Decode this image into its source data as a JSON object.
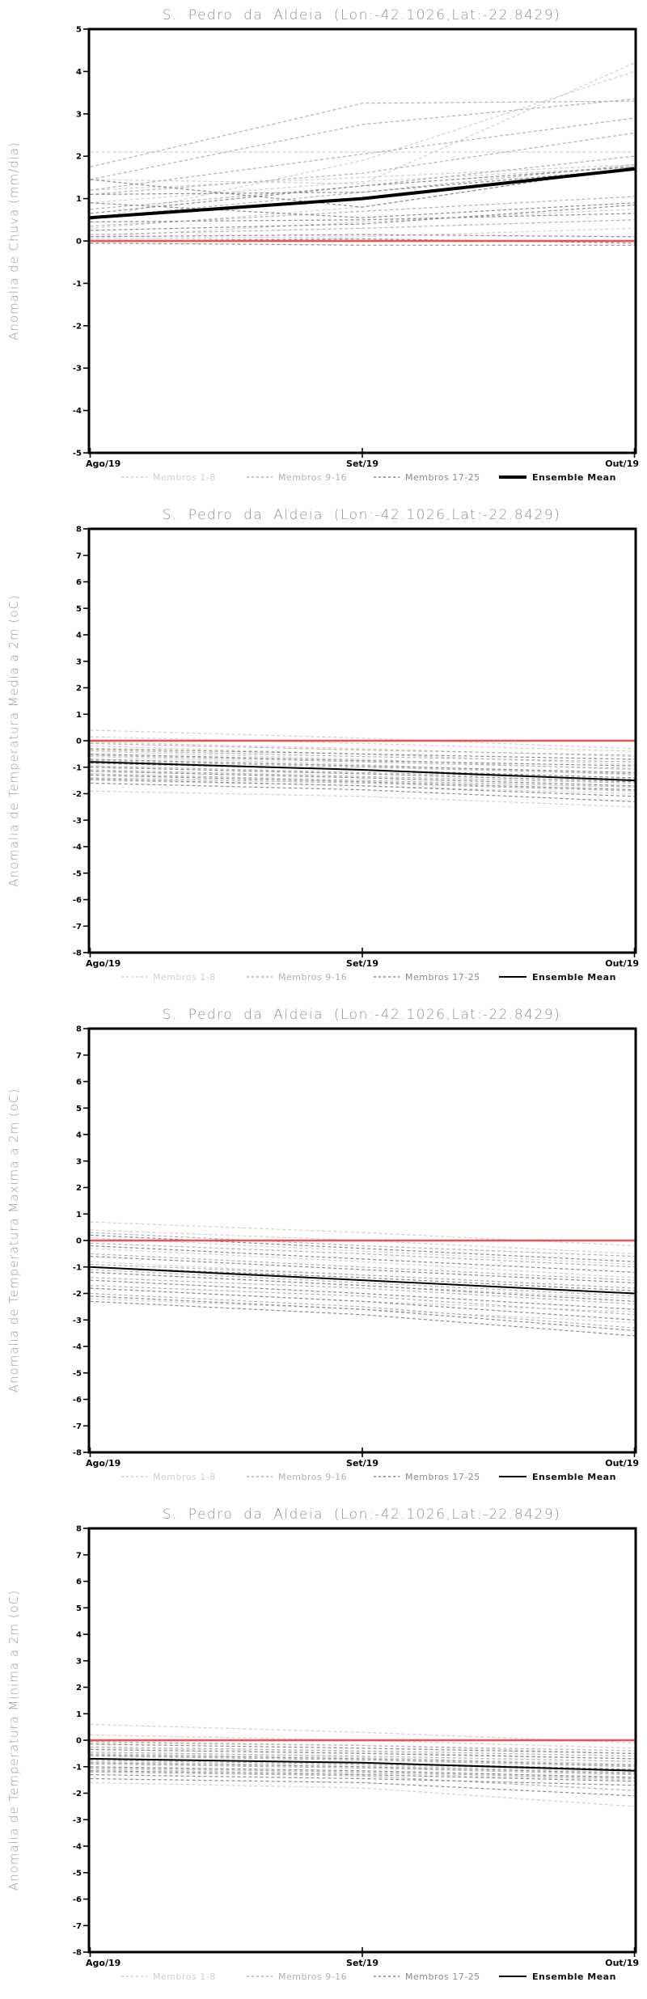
{
  "page": {
    "background": "#ffffff",
    "accent_red": "#ee5350",
    "axis_color": "#000000",
    "title_color": "#8f8f8f"
  },
  "chart_data": [
    {
      "type": "line",
      "title": "S. Pedro da Aldeia (Lon:-42.1026,Lat:-22.8429)",
      "ylabel": "Anomalia de Chuva (mm/dia)",
      "x_labels": [
        "Ago/19",
        "Set/19",
        "Out/19"
      ],
      "ylim": [
        -5,
        5
      ],
      "yticks": [
        5,
        4,
        3,
        2,
        1,
        0,
        -1,
        -2,
        -3,
        -4,
        -5
      ],
      "zero_line": {
        "value": 0,
        "color": "#ee5350"
      },
      "ensemble": {
        "label": "Ensemble Mean",
        "color": "#000000",
        "width": 4,
        "values": [
          0.55,
          1.0,
          1.7
        ]
      },
      "groups": [
        {
          "label": "Membros 1-8",
          "color": "#d0d0d0",
          "members": [
            [
              2.1,
              2.1,
              2.1
            ],
            [
              1.45,
              1.35,
              4.2
            ],
            [
              0.5,
              1.9,
              4.0
            ],
            [
              1.2,
              1.5,
              1.8
            ],
            [
              0.3,
              0.8,
              1.75
            ],
            [
              0.1,
              0.45,
              0.75
            ],
            [
              0.9,
              1.4,
              1.75
            ],
            [
              0.05,
              0.1,
              0.3
            ]
          ]
        },
        {
          "label": "Membros 9-16",
          "color": "#b2b2b2",
          "members": [
            [
              1.75,
              3.25,
              3.3
            ],
            [
              1.45,
              2.75,
              3.35
            ],
            [
              1.2,
              2.05,
              2.9
            ],
            [
              1.1,
              1.6,
              2.55
            ],
            [
              0.75,
              1.3,
              2.0
            ],
            [
              0.55,
              1.15,
              1.8
            ],
            [
              0.35,
              0.7,
              1.05
            ],
            [
              0.15,
              0.3,
              0.5
            ]
          ]
        },
        {
          "label": "Membros 17-25",
          "color": "#8c8c8c",
          "members": [
            [
              1.45,
              0.8,
              1.75
            ],
            [
              1.1,
              1.15,
              1.7
            ],
            [
              0.9,
              0.55,
              0.9
            ],
            [
              0.65,
              1.3,
              1.75
            ],
            [
              0.45,
              0.5,
              0.65
            ],
            [
              0.25,
              0.4,
              0.85
            ],
            [
              0.1,
              0.15,
              0.1
            ],
            [
              0.0,
              0.05,
              -0.05
            ],
            [
              -0.05,
              -0.1,
              -0.1
            ]
          ]
        }
      ]
    },
    {
      "type": "line",
      "title": "S. Pedro da Aldeia (Lon:-42.1026,Lat:-22.8429)",
      "ylabel": "Anomalia de Temperatura Media a 2m (oC)",
      "x_labels": [
        "Ago/19",
        "Set/19",
        "Out/19"
      ],
      "ylim": [
        -8,
        8
      ],
      "yticks": [
        8,
        7,
        6,
        5,
        4,
        3,
        2,
        1,
        0,
        -1,
        -2,
        -3,
        -4,
        -5,
        -6,
        -7,
        -8
      ],
      "zero_line": {
        "value": 0,
        "color": "#ee5350"
      },
      "ensemble": {
        "label": "Ensemble Mean",
        "color": "#000000",
        "width": 2,
        "values": [
          -0.8,
          -1.1,
          -1.5
        ]
      },
      "groups": [
        {
          "label": "Membros 1-8",
          "color": "#d0d0d0",
          "members": [
            [
              0.4,
              0.1,
              -0.3
            ],
            [
              0.15,
              -0.1,
              -0.4
            ],
            [
              -0.05,
              -0.3,
              -0.6
            ],
            [
              -0.2,
              -0.5,
              -0.9
            ],
            [
              -0.4,
              -0.7,
              -1.1
            ],
            [
              -0.6,
              -0.9,
              -1.3
            ],
            [
              -1.5,
              -1.7,
              -2.0
            ],
            [
              -1.9,
              -2.1,
              -2.5
            ]
          ]
        },
        {
          "label": "Membros 9-16",
          "color": "#b2b2b2",
          "members": [
            [
              -0.1,
              -0.35,
              -0.55
            ],
            [
              -0.35,
              -0.6,
              -0.8
            ],
            [
              -0.55,
              -0.8,
              -1.05
            ],
            [
              -0.75,
              -1.0,
              -1.25
            ],
            [
              -0.95,
              -1.2,
              -1.45
            ],
            [
              -1.1,
              -1.35,
              -1.6
            ],
            [
              -1.25,
              -1.5,
              -1.75
            ],
            [
              -1.4,
              -1.6,
              -1.9
            ]
          ]
        },
        {
          "label": "Membros 17-25",
          "color": "#8c8c8c",
          "members": [
            [
              -0.3,
              -0.5,
              -0.7
            ],
            [
              -0.5,
              -0.75,
              -0.95
            ],
            [
              -0.7,
              -0.95,
              -1.2
            ],
            [
              -0.85,
              -1.1,
              -1.4
            ],
            [
              -1.0,
              -1.25,
              -1.55
            ],
            [
              -1.15,
              -1.4,
              -1.7
            ],
            [
              -1.3,
              -1.55,
              -1.85
            ],
            [
              -1.45,
              -1.7,
              -2.1
            ],
            [
              -1.6,
              -1.85,
              -2.3
            ]
          ]
        }
      ]
    },
    {
      "type": "line",
      "title": "S. Pedro da Aldeia (Lon:-42.1026,Lat:-22.8429)",
      "ylabel": "Anomalia de Temperatura Maxima a 2m (oC)",
      "x_labels": [
        "Ago/19",
        "Set/19",
        "Out/19"
      ],
      "ylim": [
        -8,
        8
      ],
      "yticks": [
        8,
        7,
        6,
        5,
        4,
        3,
        2,
        1,
        0,
        -1,
        -2,
        -3,
        -4,
        -5,
        -6,
        -7,
        -8
      ],
      "zero_line": {
        "value": 0,
        "color": "#ee5350"
      },
      "ensemble": {
        "label": "Ensemble Mean",
        "color": "#000000",
        "width": 2,
        "values": [
          -1.0,
          -1.5,
          -2.0
        ]
      },
      "groups": [
        {
          "label": "Membros 1-8",
          "color": "#d0d0d0",
          "members": [
            [
              0.7,
              0.3,
              -0.2
            ],
            [
              0.4,
              0.0,
              -0.5
            ],
            [
              0.1,
              -0.4,
              -0.9
            ],
            [
              -0.3,
              -0.8,
              -1.4
            ],
            [
              -0.8,
              -1.3,
              -1.8
            ],
            [
              -1.2,
              -1.7,
              -2.2
            ],
            [
              -1.8,
              -2.3,
              -2.7
            ],
            [
              -2.2,
              -2.6,
              -3.1
            ]
          ]
        },
        {
          "label": "Membros 9-16",
          "color": "#b2b2b2",
          "members": [
            [
              0.3,
              -0.2,
              -0.6
            ],
            [
              -0.1,
              -0.5,
              -1.0
            ],
            [
              -0.5,
              -1.0,
              -1.5
            ],
            [
              -0.9,
              -1.3,
              -1.8
            ],
            [
              -1.1,
              -1.6,
              -2.1
            ],
            [
              -1.4,
              -1.8,
              -2.4
            ],
            [
              -1.7,
              -2.1,
              -2.8
            ],
            [
              -2.0,
              -2.5,
              -3.3
            ]
          ]
        },
        {
          "label": "Membros 17-25",
          "color": "#8c8c8c",
          "members": [
            [
              0.2,
              -0.3,
              -0.8
            ],
            [
              -0.2,
              -0.7,
              -1.2
            ],
            [
              -0.6,
              -1.1,
              -1.6
            ],
            [
              -1.0,
              -1.4,
              -1.9
            ],
            [
              -1.2,
              -1.7,
              -2.3
            ],
            [
              -1.5,
              -2.0,
              -2.6
            ],
            [
              -1.8,
              -2.3,
              -3.0
            ],
            [
              -2.1,
              -2.6,
              -3.4
            ],
            [
              -2.3,
              -2.8,
              -3.6
            ]
          ]
        }
      ]
    },
    {
      "type": "line",
      "title": "S. Pedro da Aldeia (Lon:-42.1026,Lat:-22.8429)",
      "ylabel": "Anomalia de Temperatura Minima a 2m (oC)",
      "x_labels": [
        "Ago/19",
        "Set/19",
        "Out/19"
      ],
      "ylim": [
        -8,
        8
      ],
      "yticks": [
        8,
        7,
        6,
        5,
        4,
        3,
        2,
        1,
        0,
        -1,
        -2,
        -3,
        -4,
        -5,
        -6,
        -7,
        -8
      ],
      "zero_line": {
        "value": 0,
        "color": "#ee5350"
      },
      "ensemble": {
        "label": "Ensemble Mean",
        "color": "#000000",
        "width": 2,
        "values": [
          -0.7,
          -0.85,
          -1.15
        ]
      },
      "groups": [
        {
          "label": "Membros 1-8",
          "color": "#d0d0d0",
          "members": [
            [
              0.6,
              0.3,
              -0.1
            ],
            [
              0.2,
              0.0,
              -0.3
            ],
            [
              -0.1,
              -0.2,
              -0.5
            ],
            [
              -0.3,
              -0.45,
              -0.7
            ],
            [
              -0.5,
              -0.65,
              -0.9
            ],
            [
              -0.8,
              -0.95,
              -1.2
            ],
            [
              -1.1,
              -1.25,
              -1.5
            ],
            [
              -1.6,
              -1.8,
              -2.5
            ]
          ]
        },
        {
          "label": "Membros 9-16",
          "color": "#b2b2b2",
          "members": [
            [
              -0.05,
              -0.2,
              -0.4
            ],
            [
              -0.25,
              -0.4,
              -0.6
            ],
            [
              -0.45,
              -0.6,
              -0.8
            ],
            [
              -0.6,
              -0.75,
              -1.0
            ],
            [
              -0.75,
              -0.9,
              -1.15
            ],
            [
              -0.9,
              -1.05,
              -1.3
            ],
            [
              -1.05,
              -1.2,
              -1.45
            ],
            [
              -1.2,
              -1.35,
              -1.9
            ]
          ]
        },
        {
          "label": "Membros 17-25",
          "color": "#8c8c8c",
          "members": [
            [
              -0.15,
              -0.3,
              -0.5
            ],
            [
              -0.35,
              -0.5,
              -0.7
            ],
            [
              -0.55,
              -0.7,
              -0.95
            ],
            [
              -0.7,
              -0.85,
              -1.1
            ],
            [
              -0.85,
              -1.0,
              -1.25
            ],
            [
              -1.0,
              -1.15,
              -1.4
            ],
            [
              -1.15,
              -1.3,
              -1.55
            ],
            [
              -1.3,
              -1.45,
              -1.7
            ],
            [
              -1.45,
              -1.6,
              -2.1
            ]
          ]
        }
      ]
    }
  ]
}
